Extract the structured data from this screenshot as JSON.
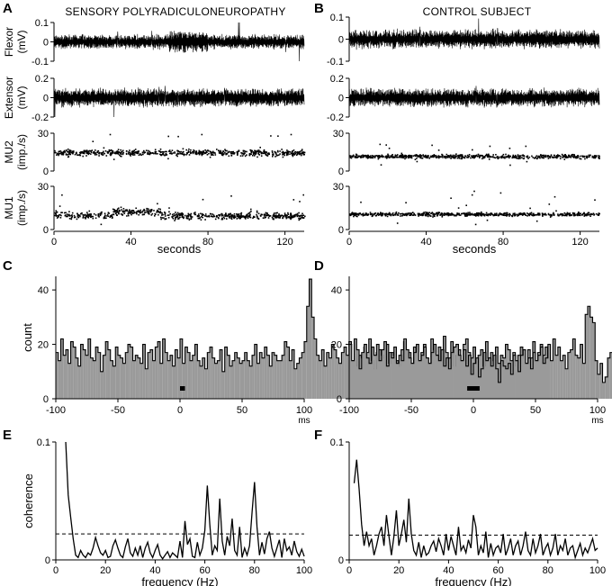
{
  "panels": [
    {
      "letter": "A",
      "title": "SENSORY POLYRADICULONEUROPATHY"
    },
    {
      "letter": "B",
      "title": "CONTROL SUBJECT"
    },
    {
      "letter": "C"
    },
    {
      "letter": "D"
    },
    {
      "letter": "E"
    },
    {
      "letter": "F"
    }
  ],
  "chart_data": [
    {
      "id": "A",
      "type": "line",
      "title": "SENSORY POLYRADICULONEUROPATHY",
      "xlabel": "seconds",
      "xlim": [
        0,
        130
      ],
      "xticks": [
        0,
        40,
        80,
        120
      ],
      "traces": [
        {
          "name": "Flexor",
          "unit": "(mV)",
          "kind": "emg",
          "ylim": [
            -0.1,
            0.1
          ],
          "yticks": [
            "0.1",
            "0",
            "-0.1"
          ],
          "yvals": [
            0.1,
            0,
            -0.1
          ],
          "amplitude": 0.035
        },
        {
          "name": "Extensor",
          "unit": "(mV)",
          "kind": "emg",
          "ylim": [
            -0.2,
            0.2
          ],
          "yticks": [
            "0.2",
            "0",
            "-0.2"
          ],
          "yvals": [
            0.2,
            0,
            -0.2
          ],
          "amplitude": 0.09
        },
        {
          "name": "MU2",
          "unit": "(imp./s)",
          "kind": "rate",
          "ylim": [
            0,
            30
          ],
          "yticks": [
            "30",
            "0"
          ],
          "yvals": [
            30,
            0
          ],
          "mean": 15,
          "spread": 3
        },
        {
          "name": "MU1",
          "unit": "(imp./s)",
          "kind": "rate",
          "ylim": [
            0,
            30
          ],
          "yticks": [
            "30",
            "0"
          ],
          "yvals": [
            30,
            0
          ],
          "mean": 10,
          "spread": 3
        }
      ]
    },
    {
      "id": "B",
      "type": "line",
      "title": "CONTROL SUBJECT",
      "xlabel": "seconds",
      "xlim": [
        0,
        130
      ],
      "xticks": [
        0,
        40,
        80,
        120
      ],
      "traces": [
        {
          "name": "Flexor",
          "unit": "(mV)",
          "kind": "emg",
          "ylim": [
            -0.1,
            0.1
          ],
          "yticks": [
            "0.1",
            "0",
            "-0.1"
          ],
          "yvals": [
            0.1,
            0,
            -0.1
          ],
          "amplitude": 0.04
        },
        {
          "name": "Extensor",
          "unit": "(mV)",
          "kind": "emg",
          "ylim": [
            -0.2,
            0.2
          ],
          "yticks": [
            "0.2",
            "0",
            "-0.2"
          ],
          "yvals": [
            0.2,
            0,
            -0.2
          ],
          "amplitude": 0.09
        },
        {
          "name": "MU2",
          "unit": "(imp./s)",
          "kind": "rate",
          "ylim": [
            0,
            30
          ],
          "yticks": [
            "30",
            "0"
          ],
          "yvals": [
            30,
            0
          ],
          "mean": 12,
          "spread": 2
        },
        {
          "name": "MU1",
          "unit": "(imp./s)",
          "kind": "rate",
          "ylim": [
            0,
            30
          ],
          "yticks": [
            "30",
            "0"
          ],
          "yvals": [
            30,
            0
          ],
          "mean": 11,
          "spread": 1.5
        }
      ]
    },
    {
      "id": "C",
      "type": "bar",
      "ylabel": "count",
      "xlabel": "ms",
      "xlim": [
        -100,
        100
      ],
      "ylim": [
        0,
        45
      ],
      "xticks": [
        -100,
        -50,
        0,
        50,
        100
      ],
      "yticks": [
        0,
        20,
        40
      ],
      "bin_width_ms": 2,
      "peak_bar": {
        "from": 0,
        "to": 4
      },
      "values": [
        17,
        14,
        22,
        16,
        18,
        13,
        21,
        19,
        15,
        12,
        20,
        18,
        16,
        22,
        15,
        14,
        19,
        17,
        10,
        16,
        21,
        18,
        14,
        12,
        19,
        16,
        15,
        13,
        17,
        20,
        19,
        14,
        16,
        15,
        13,
        20,
        11,
        17,
        18,
        14,
        19,
        21,
        13,
        22,
        17,
        14,
        16,
        12,
        18,
        15,
        22,
        13,
        19,
        17,
        14,
        16,
        20,
        14,
        12,
        15,
        11,
        17,
        19,
        15,
        13,
        14,
        18,
        10,
        19,
        16,
        12,
        14,
        17,
        15,
        13,
        14,
        17,
        14,
        12,
        16,
        20,
        13,
        17,
        15,
        19,
        16,
        12,
        17,
        16,
        14,
        14,
        16,
        21,
        19,
        14,
        18,
        11,
        13,
        15,
        17,
        21,
        34,
        44,
        30,
        22,
        16,
        14,
        18,
        12,
        17,
        15,
        20,
        18,
        15,
        13,
        17,
        19,
        16,
        21,
        14,
        12,
        18,
        16,
        15,
        19,
        17,
        22,
        14,
        11,
        17,
        18,
        16,
        15,
        20,
        13,
        17,
        16,
        14,
        12,
        18,
        21,
        15,
        17,
        13,
        19,
        16,
        14,
        17,
        20,
        15,
        13,
        22,
        18,
        16,
        19,
        14,
        23,
        17,
        15,
        21,
        12,
        16,
        18,
        14,
        20,
        22,
        17,
        15,
        19,
        13,
        16,
        18,
        12,
        21,
        15,
        17,
        14,
        19,
        13,
        16,
        15,
        20,
        18,
        14,
        17,
        12,
        16,
        19,
        15,
        13,
        18,
        15,
        21,
        14,
        17,
        20,
        16,
        19,
        15
      ]
    },
    {
      "id": "D",
      "type": "bar",
      "xlabel": "ms",
      "xlim": [
        -100,
        100
      ],
      "ylim": [
        0,
        45
      ],
      "xticks": [
        -100,
        -50,
        0,
        50,
        100
      ],
      "yticks": [
        0,
        20,
        40
      ],
      "bin_width_ms": 2,
      "peak_bar": {
        "from": -5,
        "to": 5
      },
      "values": [
        20,
        14,
        22,
        18,
        11,
        17,
        20,
        15,
        13,
        19,
        16,
        20,
        14,
        18,
        21,
        12,
        17,
        15,
        19,
        13,
        16,
        14,
        22,
        18,
        15,
        13,
        17,
        20,
        14,
        16,
        19,
        15,
        13,
        17,
        20,
        16,
        14,
        18,
        12,
        15,
        11,
        17,
        19,
        20,
        16,
        14,
        18,
        12,
        16,
        9,
        13,
        15,
        8,
        11,
        17,
        14,
        15,
        12,
        16,
        11,
        6,
        14,
        12,
        11,
        13,
        9,
        16,
        14,
        10,
        16,
        18,
        13,
        15,
        11,
        17,
        14,
        16,
        19,
        13,
        15,
        20,
        14,
        22,
        16,
        19,
        14,
        16,
        11,
        17,
        18,
        22,
        16,
        15,
        20,
        13,
        31,
        34,
        30,
        28,
        14,
        9,
        13,
        6,
        8,
        15,
        17,
        14,
        19,
        16,
        13,
        15,
        12,
        17,
        14,
        16,
        18,
        13,
        15,
        17,
        14,
        20,
        16,
        12,
        18,
        15,
        13,
        17,
        21,
        14,
        16,
        19,
        13,
        15,
        18,
        14,
        20,
        16,
        12,
        17,
        15,
        13,
        18,
        21,
        16,
        14,
        19,
        15,
        17,
        13,
        16,
        18,
        14,
        15,
        22,
        16,
        17,
        13,
        15,
        19,
        14,
        16,
        25,
        18,
        15,
        13,
        17,
        16,
        14,
        20,
        22,
        16,
        15,
        18,
        17,
        23,
        19,
        15,
        12,
        17,
        21,
        15,
        14,
        16,
        19,
        13,
        22,
        17,
        15,
        14,
        16,
        18,
        20,
        16,
        14,
        17,
        15,
        13,
        16
      ]
    },
    {
      "id": "E",
      "type": "line",
      "xlabel": "frequency (Hz)",
      "ylabel": "coherence",
      "xlim": [
        0,
        100
      ],
      "ylim": [
        0,
        0.1
      ],
      "xticks": [
        0,
        20,
        40,
        60,
        80,
        100
      ],
      "yticks": [
        0,
        0.1
      ],
      "significance_level": 0.022,
      "x": [
        4,
        5,
        6,
        7,
        8,
        9,
        10,
        11,
        12,
        13,
        14,
        15,
        16,
        17,
        18,
        19,
        20,
        21,
        22,
        23,
        24,
        25,
        26,
        27,
        28,
        29,
        30,
        31,
        32,
        33,
        34,
        35,
        36,
        37,
        38,
        39,
        40,
        41,
        42,
        43,
        44,
        45,
        46,
        47,
        48,
        49,
        50,
        51,
        52,
        53,
        54,
        55,
        56,
        57,
        58,
        59,
        60,
        61,
        62,
        63,
        64,
        65,
        66,
        67,
        68,
        69,
        70,
        71,
        72,
        73,
        74,
        75,
        76,
        77,
        78,
        79,
        80,
        81,
        82,
        83,
        84,
        85,
        86,
        87,
        88,
        89,
        90,
        91,
        92,
        93,
        94,
        95,
        96,
        97,
        98,
        99,
        100
      ],
      "values": [
        0.1,
        0.055,
        0.036,
        0.018,
        0.004,
        0.002,
        0.008,
        0.004,
        0.002,
        0.006,
        0.004,
        0.01,
        0.019,
        0.012,
        0.006,
        0.004,
        0.008,
        0.002,
        0.003,
        0.012,
        0.017,
        0.01,
        0.004,
        0.002,
        0.011,
        0.018,
        0.006,
        0.003,
        0.01,
        0.004,
        0.012,
        0.002,
        0.01,
        0.015,
        0.006,
        0.002,
        0.008,
        0.013,
        0.004,
        0.001,
        0.004,
        0.007,
        0.002,
        0.006,
        0.004,
        0.002,
        0.016,
        0.002,
        0.033,
        0.013,
        0.018,
        0.003,
        0.002,
        0.015,
        0.004,
        0.01,
        0.025,
        0.063,
        0.03,
        0.004,
        0.012,
        0.008,
        0.052,
        0.016,
        0.004,
        0.02,
        0.012,
        0.035,
        0.008,
        0.004,
        0.028,
        0.002,
        0.01,
        0.004,
        0.012,
        0.04,
        0.066,
        0.028,
        0.004,
        0.015,
        0.005,
        0.018,
        0.024,
        0.01,
        0.003,
        0.01,
        0.017,
        0.002,
        0.018,
        0.008,
        0.011,
        0.004,
        0.016,
        0.007,
        0.003,
        0.009,
        0.003
      ]
    },
    {
      "id": "F",
      "type": "line",
      "xlabel": "frequency (Hz)",
      "xlim": [
        0,
        100
      ],
      "ylim": [
        0,
        0.1
      ],
      "xticks": [
        0,
        20,
        40,
        60,
        80,
        100
      ],
      "yticks": [
        0,
        0.1
      ],
      "significance_level": 0.021,
      "x": [
        2,
        3,
        4,
        5,
        6,
        7,
        8,
        9,
        10,
        11,
        12,
        13,
        14,
        15,
        16,
        17,
        18,
        19,
        20,
        21,
        22,
        23,
        24,
        25,
        26,
        27,
        28,
        29,
        30,
        31,
        32,
        33,
        34,
        35,
        36,
        37,
        38,
        39,
        40,
        41,
        42,
        43,
        44,
        45,
        46,
        47,
        48,
        49,
        50,
        51,
        52,
        53,
        54,
        55,
        56,
        57,
        58,
        59,
        60,
        61,
        62,
        63,
        64,
        65,
        66,
        67,
        68,
        69,
        70,
        71,
        72,
        73,
        74,
        75,
        76,
        77,
        78,
        79,
        80,
        81,
        82,
        83,
        84,
        85,
        86,
        87,
        88,
        89,
        90,
        91,
        92,
        93,
        94,
        95,
        96,
        97,
        98,
        99,
        100
      ],
      "values": [
        0.065,
        0.085,
        0.06,
        0.03,
        0.012,
        0.024,
        0.012,
        0.018,
        0.004,
        0.012,
        0.022,
        0.028,
        0.012,
        0.038,
        0.02,
        0.004,
        0.02,
        0.042,
        0.012,
        0.022,
        0.034,
        0.015,
        0.052,
        0.022,
        0.008,
        0.004,
        0.015,
        0.002,
        0.012,
        0.004,
        0.006,
        0.012,
        0.016,
        0.007,
        0.018,
        0.012,
        0.004,
        0.022,
        0.008,
        0.02,
        0.012,
        0.004,
        0.028,
        0.008,
        0.012,
        0.006,
        0.017,
        0.01,
        0.038,
        0.028,
        0.004,
        0.012,
        0.006,
        0.024,
        0.002,
        0.014,
        0.004,
        0.01,
        0.012,
        0.006,
        0.022,
        0.004,
        0.01,
        0.018,
        0.004,
        0.012,
        0.016,
        0.004,
        0.012,
        0.024,
        0.008,
        0.004,
        0.018,
        0.006,
        0.012,
        0.022,
        0.004,
        0.01,
        0.014,
        0.004,
        0.01,
        0.022,
        0.004,
        0.012,
        0.008,
        0.018,
        0.004,
        0.01,
        0.012,
        0.002,
        0.008,
        0.014,
        0.004,
        0.01,
        0.006,
        0.012,
        0.018,
        0.008,
        0.01
      ]
    }
  ]
}
